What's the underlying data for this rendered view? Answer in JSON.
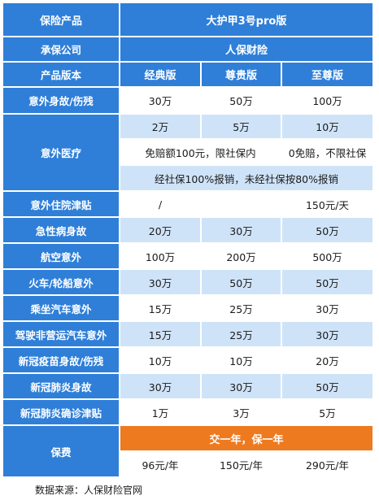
{
  "header": {
    "product_label": "保险产品",
    "product_name": "大护甲3号pro版"
  },
  "company": {
    "label": "承保公司",
    "value": "人保财险"
  },
  "versions": {
    "label": "产品版本",
    "names": [
      "经典版",
      "尊贵版",
      "至尊版"
    ]
  },
  "rows": [
    {
      "label": "意外身故/伤残",
      "values": [
        "30万",
        "50万",
        "100万"
      ]
    },
    {
      "label": "意外住院津贴",
      "values": [
        "/",
        "",
        "150元/天"
      ]
    },
    {
      "label": "急性病身故",
      "values": [
        "20万",
        "30万",
        "50万"
      ]
    },
    {
      "label": "航空意外",
      "values": [
        "100万",
        "200万",
        "500万"
      ]
    },
    {
      "label": "火车/轮船意外",
      "values": [
        "30万",
        "50万",
        "50万"
      ]
    },
    {
      "label": "乘坐汽车意外",
      "values": [
        "15万",
        "25万",
        "30万"
      ]
    },
    {
      "label": "驾驶非营运汽车意外",
      "values": [
        "15万",
        "25万",
        "30万"
      ]
    },
    {
      "label": "新冠疫苗身故/伤残",
      "values": [
        "10万",
        "10万",
        "20万"
      ]
    },
    {
      "label": "新冠肺炎身故",
      "values": [
        "30万",
        "30万",
        "50万"
      ]
    },
    {
      "label": "新冠肺炎确诊津贴",
      "values": [
        "1万",
        "3万",
        "5万"
      ]
    }
  ],
  "medical": {
    "label": "意外医疗",
    "amounts": [
      "2万",
      "5万",
      "10万"
    ],
    "deductible_merged": "免赔额100元，限社保内",
    "deductible_top": "0免赔，不限社保",
    "reimburse": "经社保100%报销，未经社保按80%报销"
  },
  "premium": {
    "label": "保费",
    "term": "交一年，保一年",
    "values": [
      "96元/年",
      "150元/年",
      "290元/年"
    ]
  },
  "source": "数据来源：人保财险官网",
  "colors": {
    "blue": "#2f7fd8",
    "light_blue": "#cfe3f8",
    "orange": "#ee7a1f"
  }
}
